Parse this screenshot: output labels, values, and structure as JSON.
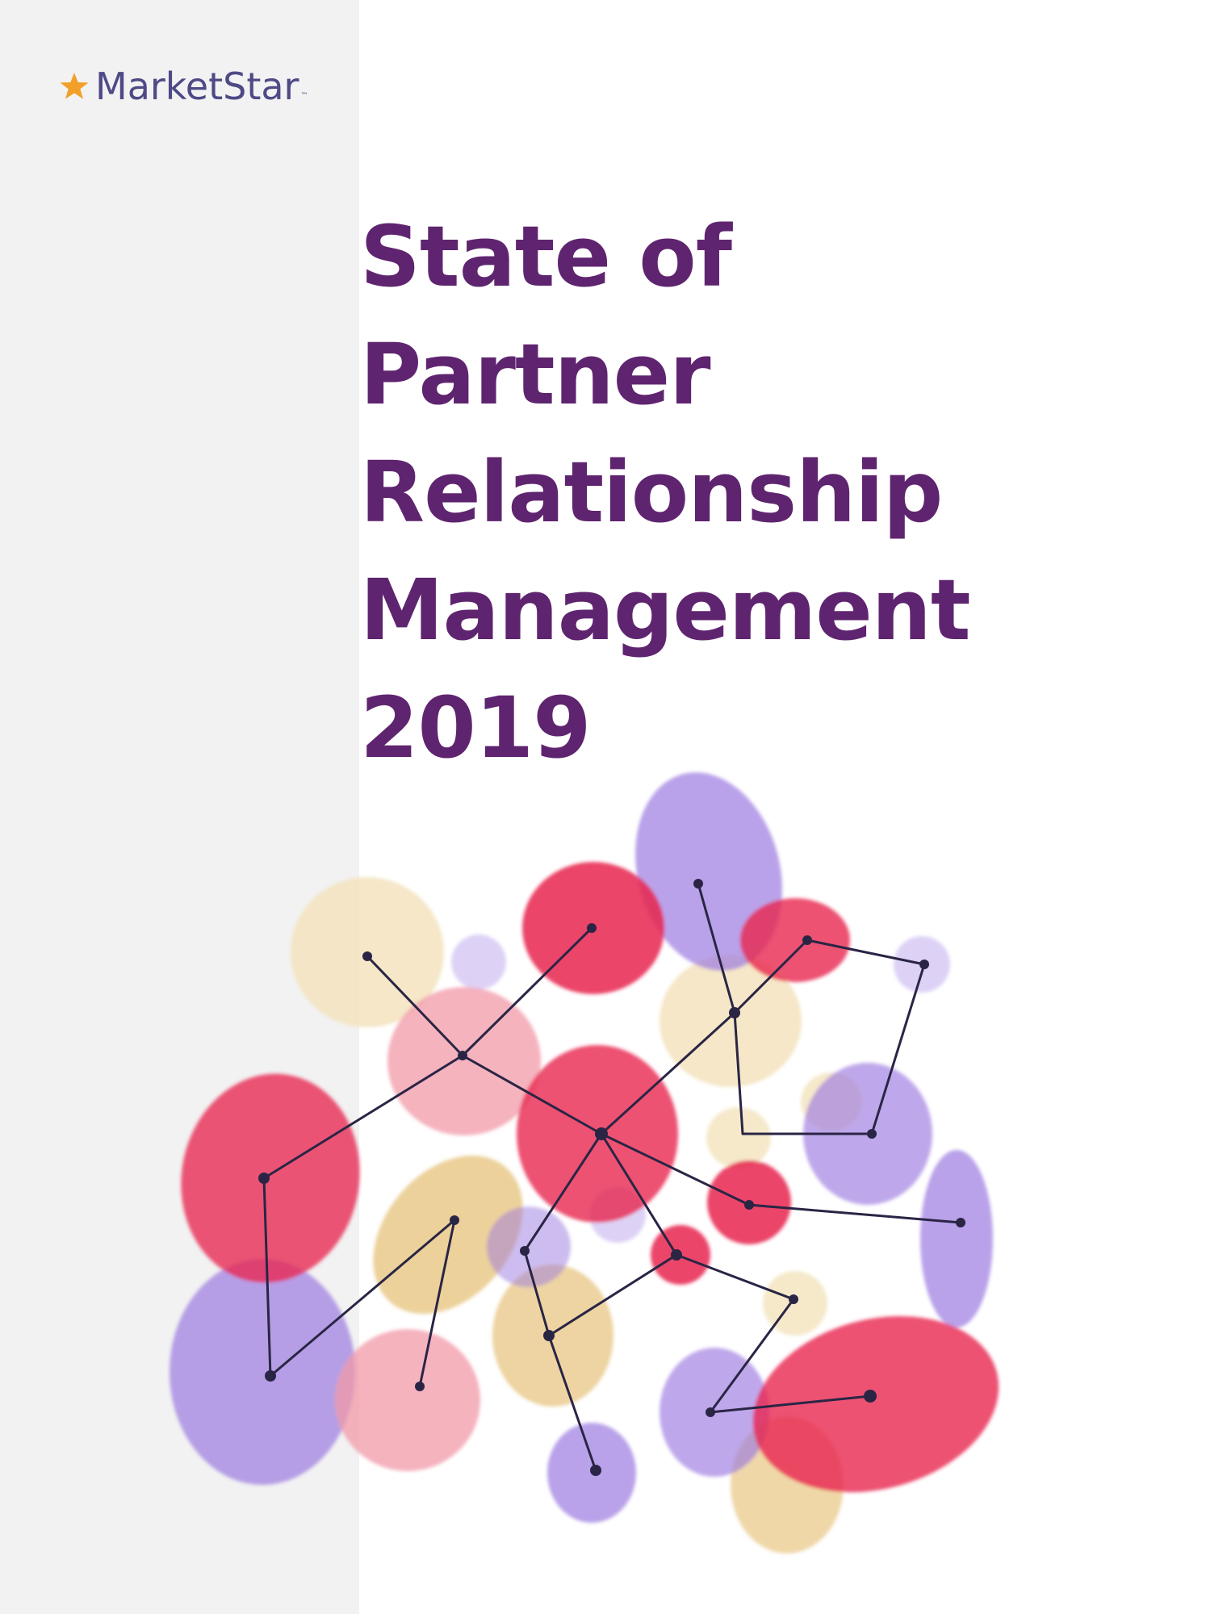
{
  "brand": {
    "name": "MarketStar",
    "trademark": "™",
    "icon": "star-icon",
    "star_color": "#f3a02a",
    "text_color": "#4e4a86"
  },
  "title": {
    "lines": [
      "State of",
      "Partner",
      "Relationship",
      "Management",
      "2019"
    ],
    "color": "#5f246f"
  },
  "illustration": {
    "icon": "network-blobs-illustration",
    "colors": {
      "red": "#e8264f",
      "pink": "#f29aa8",
      "purple": "#9b7ae0",
      "lavender": "#d9cdf5",
      "tan": "#e6c27a",
      "cream": "#f3e3bd",
      "line": "#2a2545"
    }
  }
}
